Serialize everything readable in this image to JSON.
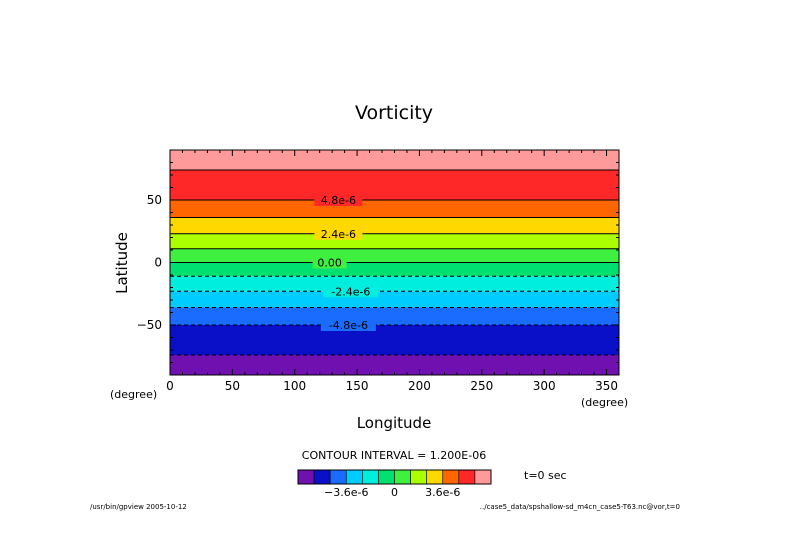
{
  "chart_data": {
    "type": "heatmap",
    "title": "Vorticity",
    "xlabel": "Longitude",
    "ylabel": "Latitude",
    "x_unit": "(degree)",
    "y_unit": "(degree)",
    "xlim": [
      0,
      360
    ],
    "ylim": [
      -90,
      90
    ],
    "x_ticks": [
      0,
      50,
      100,
      150,
      200,
      250,
      300,
      350
    ],
    "y_ticks": [
      -50,
      0,
      50
    ],
    "bands": [
      {
        "lat_bottom": -90,
        "lat_top": -74,
        "color": "#7010b0"
      },
      {
        "lat_bottom": -74,
        "lat_top": -50,
        "color": "#0a10c8"
      },
      {
        "lat_bottom": -50,
        "lat_top": -36,
        "color": "#1a6cff"
      },
      {
        "lat_bottom": -36,
        "lat_top": -23,
        "color": "#00ccff"
      },
      {
        "lat_bottom": -23,
        "lat_top": -11,
        "color": "#00eedd"
      },
      {
        "lat_bottom": -11,
        "lat_top": 0,
        "color": "#00e070"
      },
      {
        "lat_bottom": 0,
        "lat_top": 11,
        "color": "#40f040"
      },
      {
        "lat_bottom": 11,
        "lat_top": 23,
        "color": "#aaff00"
      },
      {
        "lat_bottom": 23,
        "lat_top": 36,
        "color": "#ffd800"
      },
      {
        "lat_bottom": 36,
        "lat_top": 50,
        "color": "#ff6600"
      },
      {
        "lat_bottom": 50,
        "lat_top": 74,
        "color": "#ff2828"
      },
      {
        "lat_bottom": 74,
        "lat_top": 90,
        "color": "#ff9a9a"
      }
    ],
    "contours": [
      {
        "lat": 74,
        "dashed": false
      },
      {
        "lat": 50,
        "dashed": false
      },
      {
        "lat": 36,
        "dashed": false
      },
      {
        "lat": 23,
        "dashed": false
      },
      {
        "lat": 11,
        "dashed": false
      },
      {
        "lat": 0,
        "dashed": false
      },
      {
        "lat": -11,
        "dashed": true
      },
      {
        "lat": -23,
        "dashed": true
      },
      {
        "lat": -36,
        "dashed": true
      },
      {
        "lat": -50,
        "dashed": true
      },
      {
        "lat": -74,
        "dashed": true
      }
    ],
    "contour_labels": [
      {
        "text": "4.8e-6",
        "lat": 50,
        "lon": 135
      },
      {
        "text": "2.4e-6",
        "lat": 23,
        "lon": 135
      },
      {
        "text": "0.00",
        "lat": 0,
        "lon": 128
      },
      {
        "text": "-2.4e-6",
        "lat": -23,
        "lon": 145
      },
      {
        "text": "-4.8e-6",
        "lat": -50,
        "lon": 143
      }
    ],
    "contour_interval_text": "CONTOUR INTERVAL = 1.200E-06",
    "colorbar": {
      "colors": [
        "#7010b0",
        "#0a10c8",
        "#1a6cff",
        "#00ccff",
        "#00eedd",
        "#00e070",
        "#40f040",
        "#aaff00",
        "#ffd800",
        "#ff6600",
        "#ff2828",
        "#ff9a9a"
      ],
      "tick_labels": [
        {
          "text": "-3.6e-6",
          "pos": 3
        },
        {
          "text": "0",
          "pos": 6
        },
        {
          "text": "3.6e-6",
          "pos": 9
        }
      ]
    },
    "time_label": "t=0 sec"
  },
  "footer": {
    "left": "/usr/bin/gpview  2005-10-12",
    "right": "../case5_data/spshallow-sd_m4cn_case5-T63.nc@vor,t=0"
  }
}
